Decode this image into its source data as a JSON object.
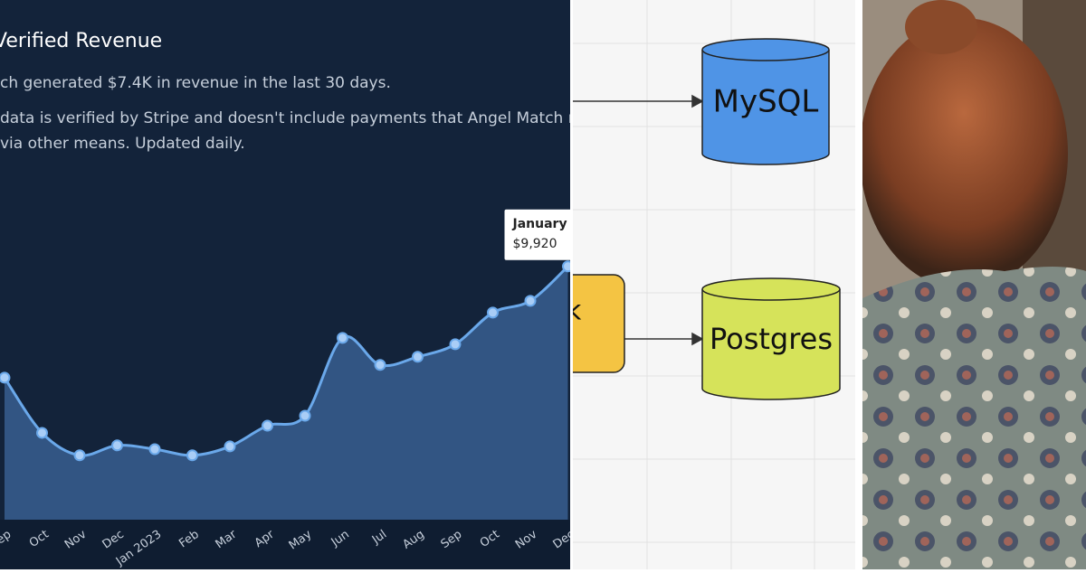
{
  "chart_data": {
    "type": "area",
    "title": "Verified Revenue",
    "subtitle": "ch generated $7.4K in revenue in the last 30 days.",
    "notes": [
      "data is verified by Stripe and doesn't include payments that Angel Match ma",
      "via other means. Updated daily."
    ],
    "categories": [
      "Sep",
      "Oct",
      "Nov",
      "Dec",
      "Jan 2023",
      "Feb",
      "Mar",
      "Apr",
      "May",
      "Jun",
      "Jul",
      "Aug",
      "Sep",
      "Oct",
      "Nov",
      "Dec"
    ],
    "values": [
      5560,
      3400,
      2520,
      2910,
      2760,
      2520,
      2870,
      3680,
      4070,
      7120,
      6060,
      6380,
      6870,
      8110,
      8570,
      9920
    ],
    "value_labels": [
      null,
      null,
      null,
      null,
      null,
      null,
      null,
      null,
      null,
      null,
      null,
      null,
      null,
      null,
      null,
      "$9,920"
    ],
    "tooltip_title": "January",
    "color": "#6aa8ea",
    "ylim": [
      0,
      12000
    ]
  },
  "diagram": {
    "nodes": [
      {
        "label": "MySQL"
      },
      {
        "label": "k"
      },
      {
        "label": "Postgres"
      }
    ]
  }
}
